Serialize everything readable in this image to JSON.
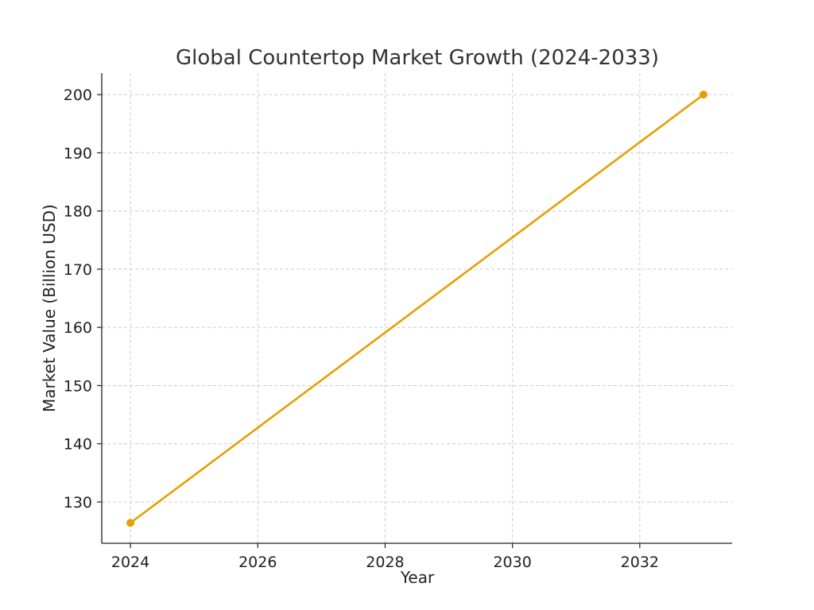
{
  "chart_data": {
    "type": "line",
    "title": "Global Countertop Market Growth (2024-2033)",
    "xlabel": "Year",
    "ylabel": "Market Value (Billion USD)",
    "xlim": [
      2023.55,
      2033.45
    ],
    "ylim": [
      122.9,
      203.7
    ],
    "x_ticks": [
      2024,
      2026,
      2028,
      2030,
      2032
    ],
    "y_ticks": [
      130,
      140,
      150,
      160,
      170,
      180,
      190,
      200
    ],
    "grid": true,
    "series": [
      {
        "color": "#e69f00",
        "marker": "circle",
        "x": [
          2024,
          2033
        ],
        "y": [
          126.4,
          200.0
        ]
      }
    ]
  }
}
